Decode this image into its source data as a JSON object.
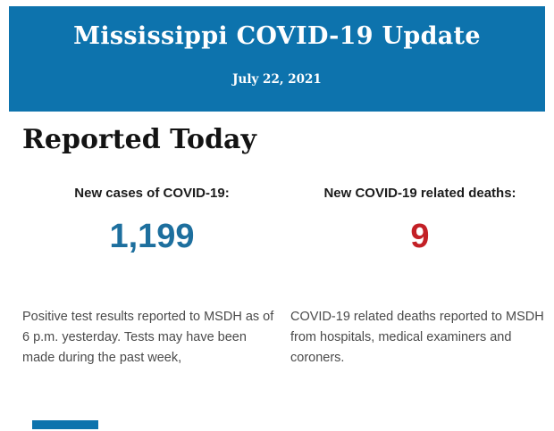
{
  "colors": {
    "header_background": "#0d73ad",
    "header_text": "#ffffff",
    "section_title_text": "#131313",
    "label_text": "#1c1c1c",
    "cases_value": "#1d6f9e",
    "deaths_value": "#c32026",
    "description_text": "#4a4a4a",
    "accent_bar": "#0d73ad"
  },
  "header": {
    "title": "Mississippi COVID-19 Update",
    "date": "July 22, 2021"
  },
  "main": {
    "section_title": "Reported Today",
    "stats": [
      {
        "label": "New cases of COVID-19:",
        "value": "1,199",
        "description": "Positive test results reported to MSDH as of 6 p.m. yesterday. Tests may have been made during the past week,"
      },
      {
        "label": "New COVID-19 related deaths:",
        "value": "9",
        "description": "COVID-19 related deaths reported to MSDH from hospitals, medical examiners and coroners."
      }
    ]
  }
}
